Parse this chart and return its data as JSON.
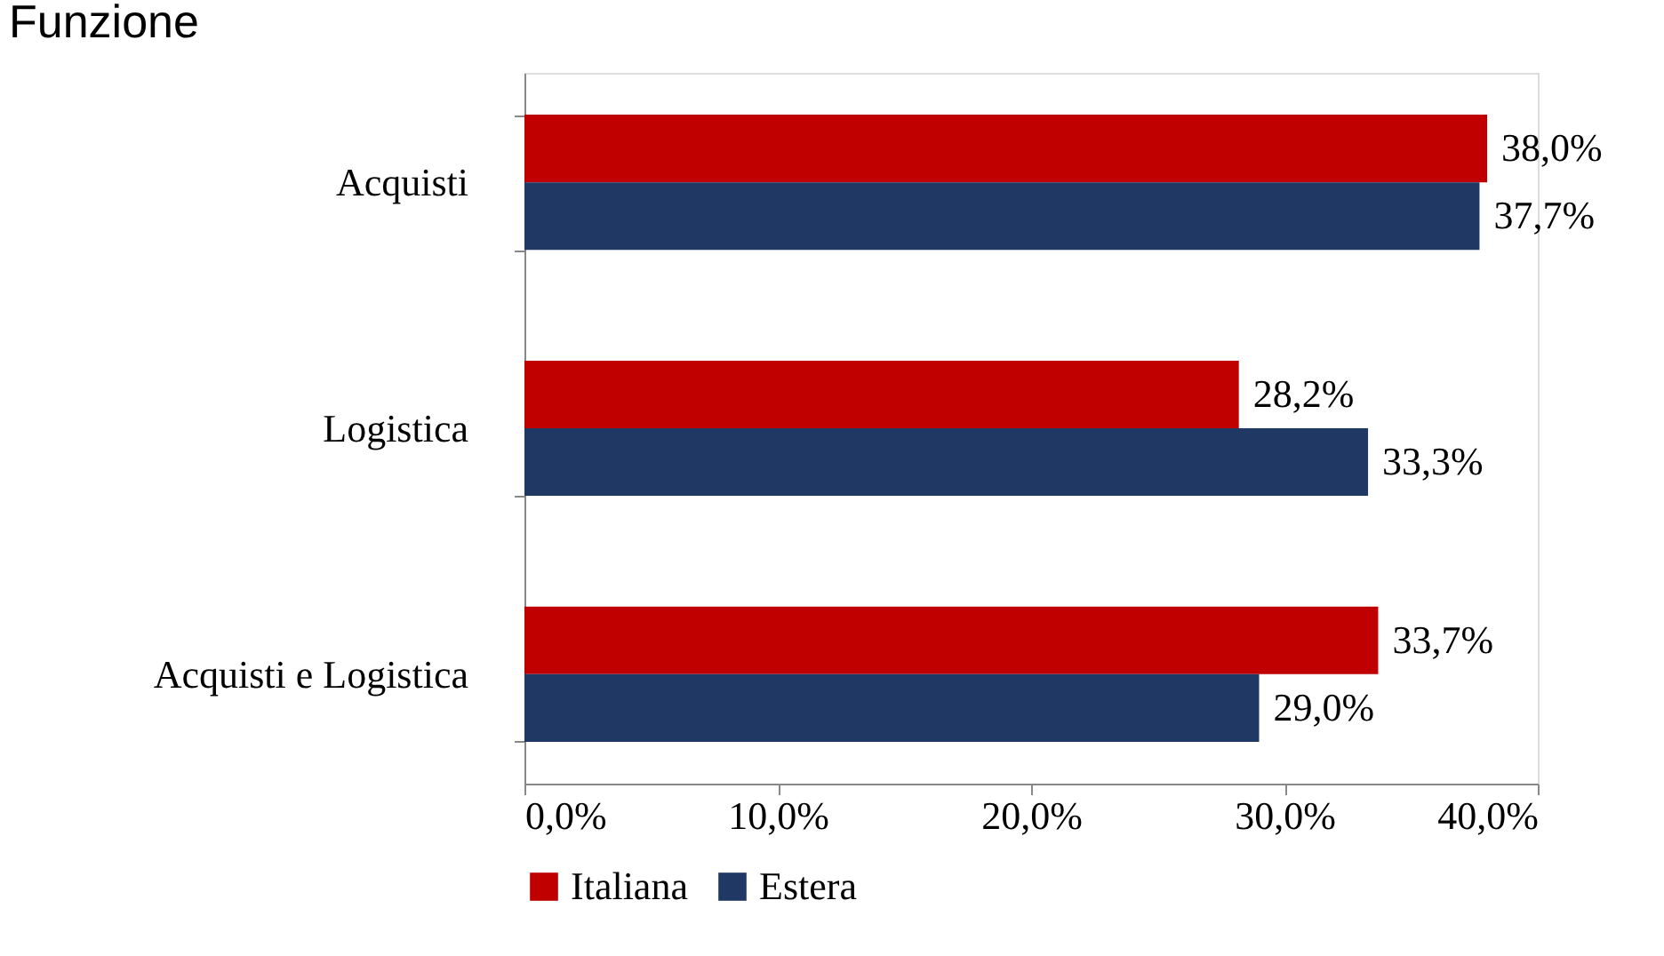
{
  "chart_data": {
    "type": "bar",
    "orientation": "horizontal",
    "title": "Funzione",
    "categories": [
      "Acquisti",
      "Logistica",
      "Acquisti e Logistica"
    ],
    "series": [
      {
        "name": "Italiana",
        "color": "#c00000",
        "values": [
          38.0,
          28.2,
          33.7
        ],
        "value_labels": [
          "38,0%",
          "28,2%",
          "33,7%"
        ]
      },
      {
        "name": "Estera",
        "color": "#1f3864",
        "values": [
          37.7,
          33.3,
          29.0
        ],
        "value_labels": [
          "37,7%",
          "33,3%",
          "29,0%"
        ]
      }
    ],
    "xlim": [
      0,
      40
    ],
    "xticks": [
      {
        "value": 0,
        "label": "0,0%"
      },
      {
        "value": 10,
        "label": "10,0%"
      },
      {
        "value": 20,
        "label": "20,0%"
      },
      {
        "value": 30,
        "label": "30,0%"
      },
      {
        "value": 40,
        "label": "40,0%"
      }
    ],
    "grid": false,
    "legend": "bottom"
  }
}
